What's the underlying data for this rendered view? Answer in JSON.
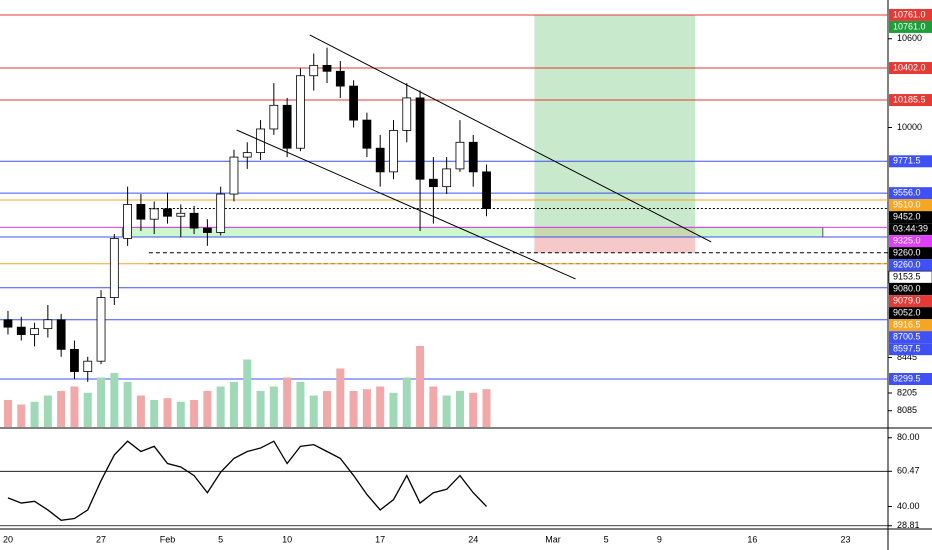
{
  "chart_data": {
    "type": "candlestick",
    "xlim": [
      -0.6,
      66.2
    ],
    "xticks": [
      {
        "value": 0,
        "label": "20"
      },
      {
        "value": 7,
        "label": "27"
      },
      {
        "value": 12,
        "label": "Feb"
      },
      {
        "value": 16,
        "label": "5"
      },
      {
        "value": 21,
        "label": "10"
      },
      {
        "value": 28,
        "label": "17"
      },
      {
        "value": 35,
        "label": "24"
      },
      {
        "value": 41,
        "label": "Mar"
      },
      {
        "value": 45,
        "label": "5"
      },
      {
        "value": 49,
        "label": "9"
      },
      {
        "value": 56,
        "label": "16"
      },
      {
        "value": 63,
        "label": "23"
      }
    ],
    "ylim": [
      7975,
      10862
    ],
    "yticks": [
      10600,
      10000,
      8445,
      8205,
      8085
    ],
    "up_color": "#ffffff",
    "down_color": "#000000",
    "candles": [
      [
        8700,
        8760,
        8600,
        8650
      ],
      [
        8650,
        8720,
        8560,
        8600
      ],
      [
        8600,
        8680,
        8520,
        8640
      ],
      [
        8640,
        8800,
        8580,
        8700
      ],
      [
        8700,
        8740,
        8450,
        8500
      ],
      [
        8500,
        8560,
        8300,
        8350
      ],
      [
        8350,
        8450,
        8280,
        8420
      ],
      [
        8420,
        8900,
        8400,
        8850
      ],
      [
        8850,
        9280,
        8800,
        9250
      ],
      [
        9250,
        9600,
        9200,
        9480
      ],
      [
        9480,
        9550,
        9300,
        9380
      ],
      [
        9380,
        9500,
        9280,
        9450
      ],
      [
        9450,
        9560,
        9350,
        9400
      ],
      [
        9400,
        9480,
        9260,
        9420
      ],
      [
        9420,
        9470,
        9280,
        9320
      ],
      [
        9320,
        9380,
        9200,
        9290
      ],
      [
        9290,
        9600,
        9270,
        9550
      ],
      [
        9550,
        9850,
        9500,
        9800
      ],
      [
        9800,
        9900,
        9720,
        9830
      ],
      [
        9830,
        10050,
        9780,
        9990
      ],
      [
        9990,
        10300,
        9950,
        10150
      ],
      [
        10150,
        10200,
        9800,
        9860
      ],
      [
        9860,
        10400,
        9840,
        10350
      ],
      [
        10350,
        10500,
        10250,
        10420
      ],
      [
        10420,
        10540,
        10300,
        10380
      ],
      [
        10380,
        10450,
        10200,
        10280
      ],
      [
        10280,
        10320,
        10000,
        10050
      ],
      [
        10050,
        10100,
        9800,
        9860
      ],
      [
        9860,
        9950,
        9600,
        9700
      ],
      [
        9700,
        10050,
        9650,
        9980
      ],
      [
        9980,
        10300,
        9900,
        10200
      ],
      [
        10200,
        10250,
        9300,
        9650
      ],
      [
        9650,
        9800,
        9350,
        9600
      ],
      [
        9600,
        9800,
        9550,
        9720
      ],
      [
        9720,
        10050,
        9700,
        9900
      ],
      [
        9900,
        9950,
        9600,
        9700
      ],
      [
        9700,
        9750,
        9400,
        9452
      ]
    ],
    "volume": {
      "ylim": [
        0,
        100
      ],
      "up_color": "#9fd9b8",
      "down_color": "#f0a8a8",
      "values": [
        30,
        25,
        28,
        35,
        40,
        45,
        38,
        55,
        60,
        50,
        35,
        30,
        32,
        28,
        30,
        40,
        45,
        50,
        75,
        40,
        45,
        55,
        50,
        35,
        40,
        65,
        40,
        42,
        45,
        38,
        55,
        90,
        45,
        35,
        40,
        38,
        42
      ]
    },
    "levels": [
      {
        "value": 10761,
        "color": "#e53935",
        "style": "solid"
      },
      {
        "value": 10402,
        "color": "#e53935",
        "style": "solid"
      },
      {
        "value": 10185.5,
        "color": "#e53935",
        "style": "solid"
      },
      {
        "value": 9771.5,
        "color": "#3f51f5",
        "style": "solid"
      },
      {
        "value": 9556,
        "color": "#3f51f5",
        "style": "solid"
      },
      {
        "value": 9510,
        "color": "#f5a623",
        "style": "solid"
      },
      {
        "value": 9452,
        "color": "#000000",
        "style": "dotted"
      },
      {
        "value": 9325,
        "color": "#e040fb",
        "style": "solid"
      },
      {
        "value": 9260,
        "color": "#3f51f5",
        "style": "solid"
      },
      {
        "value": 9153.5,
        "color": "#000000",
        "style": "dashed"
      },
      {
        "value": 9080,
        "color": "#000000",
        "style": "dashed"
      },
      {
        "value": 9079,
        "color": "#f5a623",
        "style": "solid"
      },
      {
        "value": 8916.5,
        "color": "#3f51f5",
        "style": "solid"
      },
      {
        "value": 8700.5,
        "color": "#3f51f5",
        "style": "solid"
      },
      {
        "value": 8299.5,
        "color": "#3f51f5",
        "style": "solid"
      }
    ],
    "price_tags": [
      {
        "label": "10761.0",
        "value": 10761,
        "color": "#e53935",
        "text_color": "#ffffff"
      },
      {
        "label": "10761.0",
        "value": 10761,
        "color": "#1e9e3a",
        "text_color": "#ffffff"
      },
      {
        "label": "10402.0",
        "value": 10402,
        "color": "#e53935",
        "text_color": "#ffffff"
      },
      {
        "label": "10185.5",
        "value": 10185.5,
        "color": "#e53935",
        "text_color": "#ffffff"
      },
      {
        "label": "9771.5",
        "value": 9771.5,
        "color": "#3f51f5",
        "text_color": "#ffffff"
      },
      {
        "label": "9556.0",
        "value": 9556,
        "color": "#3f51f5",
        "text_color": "#ffffff"
      },
      {
        "label": "9510.0",
        "value": 9510,
        "color": "#f5a623",
        "text_color": "#ffffff"
      },
      {
        "label": "9452.0",
        "value": 9452,
        "color": "#000000",
        "text_color": "#ffffff"
      },
      {
        "label": "9325.0",
        "value": 9325,
        "color": "#e040fb",
        "text_color": "#ffffff"
      },
      {
        "label": "9260.0",
        "value": 9260,
        "color": "#000000",
        "text_color": "#ffffff"
      },
      {
        "label": "9260.0",
        "value": 9260,
        "color": "#3f51f5",
        "text_color": "#ffffff"
      },
      {
        "label": "9153.5",
        "value": 9153.5,
        "color": "#ffffff",
        "text_color": "#000000"
      },
      {
        "label": "9080.0",
        "value": 9080,
        "color": "#000000",
        "text_color": "#ffffff"
      },
      {
        "label": "9079.0",
        "value": 9079,
        "color": "#e53935",
        "text_color": "#ffffff"
      },
      {
        "label": "9052.0",
        "value": 9052,
        "color": "#000000",
        "text_color": "#ffffff"
      },
      {
        "label": "8916.5",
        "value": 8916.5,
        "color": "#f5a623",
        "text_color": "#ffffff"
      },
      {
        "label": "8700.5",
        "value": 8700.5,
        "color": "#3f51f5",
        "text_color": "#ffffff"
      },
      {
        "label": "8597.5",
        "value": 8597.5,
        "color": "#3f51f5",
        "text_color": "#ffffff"
      },
      {
        "label": "8299.5",
        "value": 8299.5,
        "color": "#3f51f5",
        "text_color": "#ffffff"
      }
    ],
    "countdown": "03:44:39",
    "position": {
      "start": 39.6,
      "end": 51.7,
      "target": 10761,
      "entry": 9325,
      "stop": 9153.5
    },
    "zone": {
      "start": 8.6,
      "end": 61.3,
      "top": 9325,
      "bottom": 9260
    },
    "trendlines": [
      {
        "x": [
          22.7,
          52.9
        ],
        "y": [
          10626,
          9226
        ]
      },
      {
        "x": [
          17.2,
          42.7
        ],
        "y": [
          9983,
          8976
        ]
      }
    ],
    "rsi": {
      "ylim": [
        27.5,
        84.5
      ],
      "yticks": [
        {
          "value": 80,
          "label": "80.00"
        },
        {
          "value": 60.47,
          "label": "60.47"
        },
        {
          "value": 40,
          "label": "40.00"
        },
        {
          "value": 28.81,
          "label": "28.81"
        }
      ],
      "levels": [
        60.47,
        28.81
      ],
      "values": [
        45,
        42,
        43,
        38,
        32,
        33,
        38,
        55,
        70,
        78,
        72,
        75,
        65,
        63,
        58,
        48,
        60,
        68,
        72,
        74,
        78,
        65,
        75,
        76,
        72,
        68,
        58,
        47,
        38,
        44,
        58,
        42,
        48,
        50,
        58,
        48,
        40
      ]
    }
  }
}
